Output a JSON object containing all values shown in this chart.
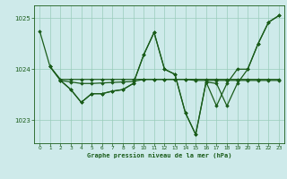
{
  "title": "Graphe pression niveau de la mer (hPa)",
  "background_color": "#ceeaea",
  "plot_bg_color": "#ceeaea",
  "grid_color": "#99ccbb",
  "line_color": "#1a5c1a",
  "marker_color": "#1a5c1a",
  "xlim": [
    -0.5,
    23.5
  ],
  "ylim": [
    1022.55,
    1025.25
  ],
  "yticks": [
    1023,
    1024,
    1025
  ],
  "xticks": [
    0,
    1,
    2,
    3,
    4,
    5,
    6,
    7,
    8,
    9,
    10,
    11,
    12,
    13,
    14,
    15,
    16,
    17,
    18,
    19,
    20,
    21,
    22,
    23
  ],
  "series": [
    {
      "x": [
        0,
        1,
        2,
        3,
        4,
        5,
        6,
        7,
        8,
        9,
        10,
        11,
        12,
        13,
        14,
        15,
        16,
        17,
        18,
        19,
        20,
        21,
        22,
        23
      ],
      "y": [
        1024.75,
        1024.05,
        1023.8,
        1023.8,
        1023.8,
        1023.8,
        1023.8,
        1023.8,
        1023.8,
        1023.8,
        1023.8,
        1023.8,
        1023.8,
        1023.8,
        1023.8,
        1023.8,
        1023.8,
        1023.8,
        1023.8,
        1023.8,
        1023.8,
        1023.8,
        1023.8,
        1023.8
      ]
    },
    {
      "x": [
        1,
        2,
        3,
        4,
        5,
        6,
        7,
        8,
        9,
        10,
        11,
        12,
        13,
        14,
        15,
        16,
        17,
        18,
        19,
        20,
        21,
        22,
        23
      ],
      "y": [
        1024.05,
        1023.78,
        1023.75,
        1023.72,
        1023.72,
        1023.73,
        1023.74,
        1023.75,
        1023.76,
        1023.8,
        1023.8,
        1023.8,
        1023.8,
        1023.8,
        1023.78,
        1023.78,
        1023.78,
        1023.78,
        1023.78,
        1023.78,
        1023.78,
        1023.78,
        1023.78
      ]
    },
    {
      "x": [
        2,
        3,
        4,
        5,
        6,
        7,
        8,
        9,
        10,
        11,
        12,
        13,
        14,
        15,
        16,
        17,
        18,
        19,
        20,
        21,
        22,
        23
      ],
      "y": [
        1023.78,
        1023.6,
        1023.35,
        1023.52,
        1023.52,
        1023.57,
        1023.6,
        1023.72,
        1024.28,
        1024.72,
        1024.0,
        1023.9,
        1023.15,
        1022.72,
        1023.75,
        1023.72,
        1023.28,
        1023.72,
        1024.0,
        1024.5,
        1024.92,
        1025.05
      ]
    },
    {
      "x": [
        1,
        2,
        3,
        4,
        5,
        6,
        7,
        8,
        9,
        10,
        11,
        12,
        13,
        14,
        15,
        16,
        17,
        18,
        19,
        20,
        21,
        22,
        23
      ],
      "y": [
        1024.05,
        1023.78,
        1023.6,
        1023.35,
        1023.52,
        1023.52,
        1023.57,
        1023.6,
        1023.72,
        1024.28,
        1024.72,
        1024.0,
        1023.9,
        1023.15,
        1022.72,
        1023.75,
        1023.28,
        1023.72,
        1024.0,
        1024.0,
        1024.5,
        1024.92,
        1025.05
      ]
    }
  ]
}
